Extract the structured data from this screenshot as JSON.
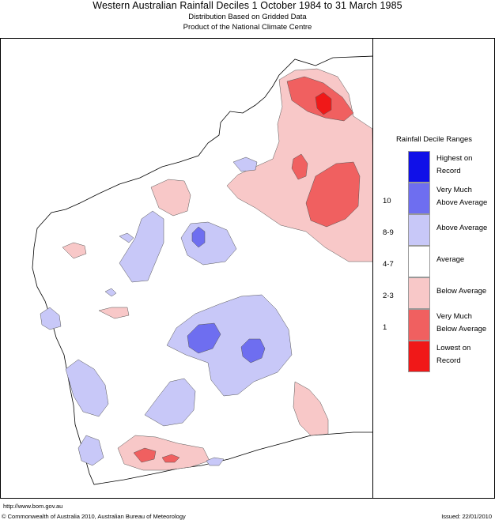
{
  "title": "Western Australian Rainfall Deciles     1 October 1984 to 31 March 1985",
  "subtitle_1": "Distribution Based on Gridded Data",
  "subtitle_2": "Product of the National Climate Centre",
  "legend": {
    "title": "Rainfall Decile Ranges",
    "items": [
      {
        "label_1": "Highest on",
        "label_2": "Record",
        "decile": "",
        "color": "#1010e8"
      },
      {
        "label_1": "Very Much",
        "label_2": "Above Average",
        "decile": "10",
        "color": "#6e6ef0"
      },
      {
        "label_1": "Above Average",
        "label_2": "",
        "decile": "8-9",
        "color": "#c8c8f8"
      },
      {
        "label_1": "Average",
        "label_2": "",
        "decile": "4-7",
        "color": "#ffffff"
      },
      {
        "label_1": "Below Average",
        "label_2": "",
        "decile": "2-3",
        "color": "#f8c8c8"
      },
      {
        "label_1": "Very Much",
        "label_2": "Below Average",
        "decile": "1",
        "color": "#f06060"
      },
      {
        "label_1": "Lowest on",
        "label_2": "Record",
        "decile": "",
        "color": "#f01818"
      }
    ]
  },
  "footer": {
    "url": "http://www.bom.gov.au",
    "copyright": "© Commonwealth of Australia 2010, Australian Bureau of Meteorology",
    "issued": "Issued: 22/01/2010"
  }
}
